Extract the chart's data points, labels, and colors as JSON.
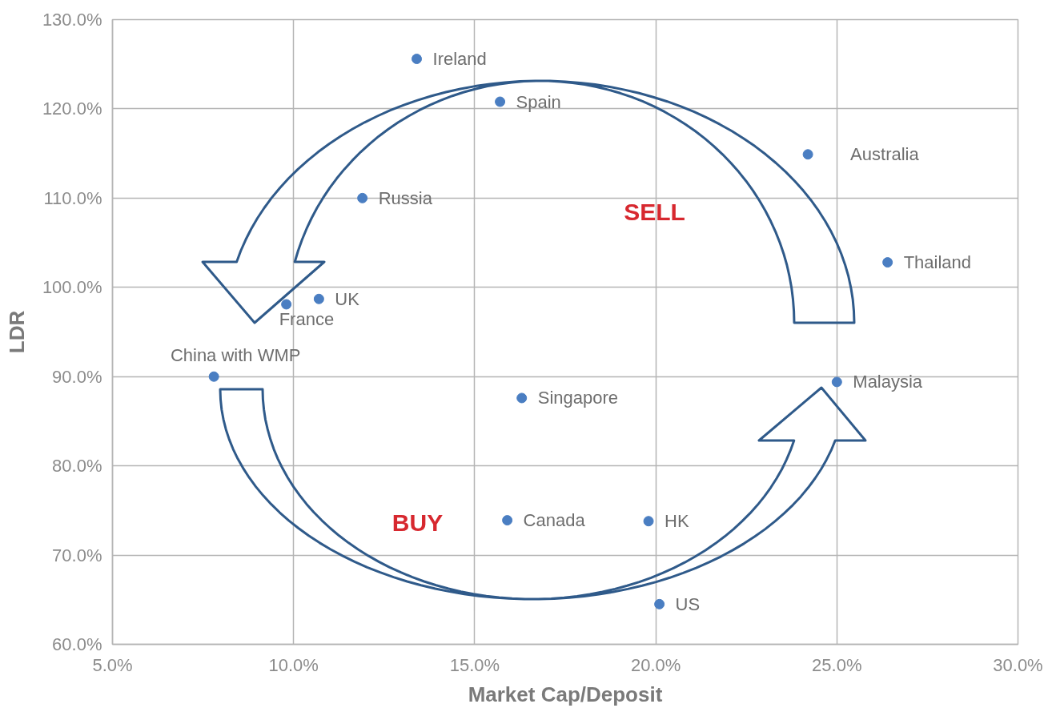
{
  "chart_data": {
    "type": "scatter",
    "xlabel": "Market Cap/Deposit",
    "ylabel": "LDR",
    "xlim": [
      5,
      30
    ],
    "xticks": [
      {
        "value": 5,
        "label": "5.0%"
      },
      {
        "value": 10,
        "label": "10.0%"
      },
      {
        "value": 15,
        "label": "15.0%"
      },
      {
        "value": 20,
        "label": "20.0%"
      },
      {
        "value": 25,
        "label": "25.0%"
      },
      {
        "value": 30,
        "label": "30.0%"
      }
    ],
    "ylim": [
      60,
      130
    ],
    "yticks": [
      {
        "value": 60,
        "label": "60.0%"
      },
      {
        "value": 70,
        "label": "70.0%"
      },
      {
        "value": 80,
        "label": "80.0%"
      },
      {
        "value": 90,
        "label": "90.0%"
      },
      {
        "value": 100,
        "label": "100.0%"
      },
      {
        "value": 110,
        "label": "110.0%"
      },
      {
        "value": 120,
        "label": "120.0%"
      },
      {
        "value": 130,
        "label": "130.0%"
      }
    ],
    "grid": true,
    "marker": "circle",
    "annotations": [
      "SELL",
      "BUY"
    ],
    "series": [
      {
        "name": "Ireland",
        "color": "#4a7ec2",
        "x": [
          13.4
        ],
        "values": [
          125.6
        ]
      },
      {
        "name": "Spain",
        "color": "#4a7ec2",
        "x": [
          15.7
        ],
        "values": [
          120.8
        ]
      },
      {
        "name": "Australia",
        "color": "#4a7ec2",
        "x": [
          24.2
        ],
        "values": [
          114.9
        ]
      },
      {
        "name": "Russia",
        "color": "#4a7ec2",
        "x": [
          11.9
        ],
        "values": [
          110.0
        ]
      },
      {
        "name": "Thailand",
        "color": "#4a7ec2",
        "x": [
          26.4
        ],
        "values": [
          102.8
        ]
      },
      {
        "name": "UK",
        "color": "#4a7ec2",
        "x": [
          10.7
        ],
        "values": [
          98.7
        ]
      },
      {
        "name": "France",
        "color": "#4a7ec2",
        "x": [
          9.8
        ],
        "values": [
          98.1
        ]
      },
      {
        "name": "China with WMP",
        "color": "#4a7ec2",
        "x": [
          7.8
        ],
        "values": [
          90.0
        ]
      },
      {
        "name": "Malaysia",
        "color": "#4a7ec2",
        "x": [
          25.0
        ],
        "values": [
          89.4
        ]
      },
      {
        "name": "Singapore",
        "color": "#4a7ec2",
        "x": [
          16.3
        ],
        "values": [
          87.6
        ]
      },
      {
        "name": "Canada",
        "color": "#4a7ec2",
        "x": [
          15.9
        ],
        "values": [
          73.9
        ]
      },
      {
        "name": "HK",
        "color": "#4a7ec2",
        "x": [
          19.8
        ],
        "values": [
          73.8
        ]
      },
      {
        "name": "US",
        "color": "#4a7ec2",
        "x": [
          20.1
        ],
        "values": [
          64.5
        ]
      }
    ]
  }
}
